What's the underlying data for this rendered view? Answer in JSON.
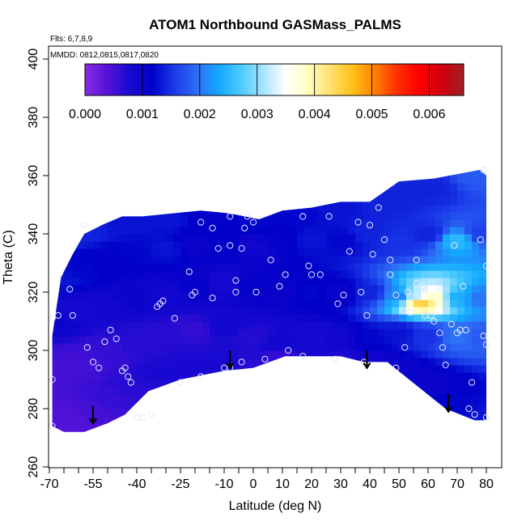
{
  "chart_data": {
    "type": "heatmap",
    "title": "ATOM1 Northbound GASMass_PALMS",
    "subtitle_flights": "Flts: 6,7,8,9",
    "subtitle_dates": "MMDD: 0812,0815,0817,0820",
    "xlabel": "Latitude (deg N)",
    "ylabel": "Theta (C)",
    "xlim": [
      -70,
      82
    ],
    "ylim": [
      260,
      405
    ],
    "x_ticks_major": [
      "-70",
      "-55",
      "-40",
      "-25",
      "-10",
      "0",
      "10",
      "20",
      "30",
      "40",
      "50",
      "60",
      "70",
      "80"
    ],
    "x_tick_values_major": [
      -70,
      -55,
      -40,
      -25,
      -10,
      0,
      10,
      20,
      30,
      40,
      50,
      60,
      70,
      80
    ],
    "x_ticks_minor": [
      -65,
      -60,
      -50,
      -45,
      -35,
      -30,
      -20,
      -15,
      -5,
      5,
      15,
      25,
      35,
      45,
      55,
      65,
      75
    ],
    "y_ticks": [
      "260",
      "280",
      "300",
      "320",
      "340",
      "360",
      "380",
      "400"
    ],
    "y_tick_values": [
      260,
      280,
      300,
      320,
      340,
      360,
      380,
      400
    ],
    "colorbar": {
      "min": 0.0,
      "max": 0.0066,
      "ticks": [
        "0.000",
        "0.001",
        "0.002",
        "0.003",
        "0.004",
        "0.005",
        "0.006"
      ],
      "tick_values": [
        0.0,
        0.001,
        0.002,
        0.003,
        0.004,
        0.005,
        0.006
      ],
      "colors": [
        "#8a2be2",
        "#5512d8",
        "#1a0ad0",
        "#0000c8",
        "#1a3ae8",
        "#2f6cf5",
        "#14a8ff",
        "#4ccbff",
        "#a8e4ff",
        "#ffffff",
        "#ffffc0",
        "#ffe070",
        "#ffc21a",
        "#ff8000",
        "#ff3000",
        "#ff0000",
        "#d00010",
        "#a02020"
      ]
    },
    "coverage_outline": [
      [
        -69,
        274
      ],
      [
        -69,
        305
      ],
      [
        -66,
        325
      ],
      [
        -62,
        333
      ],
      [
        -58,
        340
      ],
      [
        -52,
        343
      ],
      [
        -45,
        346
      ],
      [
        -38,
        346
      ],
      [
        -28,
        347
      ],
      [
        -18,
        348
      ],
      [
        -8,
        347
      ],
      [
        2,
        345
      ],
      [
        10,
        348
      ],
      [
        20,
        349
      ],
      [
        30,
        351
      ],
      [
        40,
        351
      ],
      [
        50,
        358
      ],
      [
        62,
        359
      ],
      [
        78,
        362
      ],
      [
        80,
        360
      ],
      [
        80,
        276
      ],
      [
        76,
        276
      ],
      [
        66,
        280
      ],
      [
        56,
        288
      ],
      [
        46,
        296
      ],
      [
        38,
        296
      ],
      [
        30,
        298
      ],
      [
        20,
        298
      ],
      [
        11,
        298
      ],
      [
        0,
        294
      ],
      [
        -10,
        293
      ],
      [
        -25,
        290
      ],
      [
        -36,
        286
      ],
      [
        -44,
        278
      ],
      [
        -50,
        275
      ],
      [
        -58,
        272
      ],
      [
        -65,
        272
      ],
      [
        -69,
        274
      ]
    ],
    "field_points": [
      [
        -68,
        275,
        0.0004
      ],
      [
        -62,
        277,
        0.0004
      ],
      [
        -55,
        279,
        0.0005
      ],
      [
        -48,
        283,
        0.0006
      ],
      [
        -40,
        287,
        0.0007
      ],
      [
        -30,
        292,
        0.0008
      ],
      [
        -20,
        294,
        0.0008
      ],
      [
        -10,
        295,
        0.0008
      ],
      [
        0,
        295,
        0.0007
      ],
      [
        10,
        297,
        0.0006
      ],
      [
        20,
        297,
        0.0008
      ],
      [
        30,
        296,
        0.0007
      ],
      [
        40,
        296,
        0.0009
      ],
      [
        50,
        293,
        0.001
      ],
      [
        60,
        288,
        0.001
      ],
      [
        70,
        281,
        0.0012
      ],
      [
        78,
        278,
        0.0013
      ],
      [
        -68,
        292,
        0.0005
      ],
      [
        -60,
        296,
        0.0005
      ],
      [
        -50,
        300,
        0.0006
      ],
      [
        -40,
        303,
        0.0007
      ],
      [
        -30,
        305,
        0.0007
      ],
      [
        -20,
        307,
        0.0006
      ],
      [
        -10,
        308,
        0.0009
      ],
      [
        0,
        305,
        0.0007
      ],
      [
        10,
        303,
        0.0009
      ],
      [
        20,
        305,
        0.0008
      ],
      [
        30,
        304,
        0.0009
      ],
      [
        40,
        304,
        0.0012
      ],
      [
        50,
        306,
        0.0013
      ],
      [
        60,
        305,
        0.0015
      ],
      [
        70,
        305,
        0.002
      ],
      [
        78,
        305,
        0.0018
      ],
      [
        -68,
        310,
        0.001
      ],
      [
        -60,
        314,
        0.0008
      ],
      [
        -50,
        316,
        0.0009
      ],
      [
        -40,
        318,
        0.001
      ],
      [
        -30,
        320,
        0.0009
      ],
      [
        -20,
        322,
        0.0011
      ],
      [
        -10,
        323,
        0.0008
      ],
      [
        0,
        322,
        0.0011
      ],
      [
        10,
        321,
        0.001
      ],
      [
        20,
        320,
        0.0012
      ],
      [
        30,
        320,
        0.001
      ],
      [
        40,
        320,
        0.0014
      ],
      [
        50,
        319,
        0.0021
      ],
      [
        56,
        319,
        0.0032
      ],
      [
        58,
        317,
        0.0045
      ],
      [
        62,
        318,
        0.0038
      ],
      [
        70,
        318,
        0.0024
      ],
      [
        78,
        318,
        0.002
      ],
      [
        -66,
        325,
        0.0013
      ],
      [
        -60,
        328,
        0.0012
      ],
      [
        -50,
        332,
        0.0011
      ],
      [
        -40,
        334,
        0.0012
      ],
      [
        -30,
        335,
        0.0013
      ],
      [
        -20,
        336,
        0.001
      ],
      [
        -10,
        336,
        0.0012
      ],
      [
        0,
        336,
        0.0009
      ],
      [
        10,
        338,
        0.0011
      ],
      [
        20,
        338,
        0.0013
      ],
      [
        30,
        338,
        0.0012
      ],
      [
        40,
        340,
        0.0014
      ],
      [
        50,
        338,
        0.0015
      ],
      [
        60,
        340,
        0.0014
      ],
      [
        70,
        338,
        0.0025
      ],
      [
        78,
        340,
        0.0016
      ],
      [
        -58,
        340,
        0.0014
      ],
      [
        -45,
        344,
        0.0013
      ],
      [
        -30,
        345,
        0.0013
      ],
      [
        -15,
        346,
        0.0011
      ],
      [
        0,
        344,
        0.0012
      ],
      [
        15,
        347,
        0.0012
      ],
      [
        30,
        349,
        0.0013
      ],
      [
        45,
        350,
        0.0014
      ],
      [
        60,
        356,
        0.0014
      ],
      [
        78,
        360,
        0.0018
      ]
    ],
    "sample_points": [
      [
        -69,
        311
      ],
      [
        -67,
        312
      ],
      [
        -69,
        290
      ],
      [
        -69,
        274
      ],
      [
        -62,
        312
      ],
      [
        -63,
        321
      ],
      [
        -58,
        343
      ],
      [
        -57,
        301
      ],
      [
        -55,
        296
      ],
      [
        -53,
        294
      ],
      [
        -51,
        303
      ],
      [
        -49,
        307
      ],
      [
        -47,
        304
      ],
      [
        -45,
        293
      ],
      [
        -44,
        294
      ],
      [
        -43,
        291
      ],
      [
        -42,
        289
      ],
      [
        -40,
        277
      ],
      [
        -38,
        277
      ],
      [
        -35,
        278
      ],
      [
        -33,
        315
      ],
      [
        -32,
        316
      ],
      [
        -31,
        317
      ],
      [
        -27,
        311
      ],
      [
        -25,
        289
      ],
      [
        -22,
        327
      ],
      [
        -21,
        319
      ],
      [
        -20,
        320
      ],
      [
        -18,
        291
      ],
      [
        -14,
        318
      ],
      [
        -12,
        335
      ],
      [
        -10,
        294
      ],
      [
        -8,
        294
      ],
      [
        -6,
        324
      ],
      [
        -4,
        335
      ],
      [
        -3,
        342
      ],
      [
        0,
        344
      ],
      [
        -8,
        336
      ],
      [
        -14,
        342
      ],
      [
        -18,
        344
      ],
      [
        -8,
        346
      ],
      [
        -2,
        346
      ],
      [
        -4,
        296
      ],
      [
        -6,
        320
      ],
      [
        1,
        320
      ],
      [
        4,
        297
      ],
      [
        6,
        331
      ],
      [
        9,
        322
      ],
      [
        11,
        326
      ],
      [
        12,
        300
      ],
      [
        17,
        346
      ],
      [
        17,
        298
      ],
      [
        19,
        329
      ],
      [
        20,
        326
      ],
      [
        23,
        326
      ],
      [
        26,
        346
      ],
      [
        28,
        297
      ],
      [
        29,
        316
      ],
      [
        31,
        319
      ],
      [
        33,
        334
      ],
      [
        36,
        344
      ],
      [
        37,
        320
      ],
      [
        38,
        296
      ],
      [
        39,
        312
      ],
      [
        40,
        343
      ],
      [
        41,
        333
      ],
      [
        43,
        349
      ],
      [
        45,
        338
      ],
      [
        47,
        331
      ],
      [
        47,
        326
      ],
      [
        49,
        294
      ],
      [
        49,
        319
      ],
      [
        52,
        301
      ],
      [
        53,
        320
      ],
      [
        54,
        313
      ],
      [
        56,
        331
      ],
      [
        56,
        323
      ],
      [
        58,
        322
      ],
      [
        59,
        312
      ],
      [
        61,
        312
      ],
      [
        62,
        310
      ],
      [
        64,
        306
      ],
      [
        65,
        301
      ],
      [
        66,
        295
      ],
      [
        68,
        309
      ],
      [
        69,
        336
      ],
      [
        70,
        306
      ],
      [
        71,
        307
      ],
      [
        72,
        322
      ],
      [
        73,
        307
      ],
      [
        74,
        280
      ],
      [
        75,
        289
      ],
      [
        76,
        278
      ],
      [
        78,
        338
      ],
      [
        79,
        305
      ],
      [
        80,
        302
      ],
      [
        80,
        329
      ],
      [
        80,
        277
      ],
      [
        79,
        362
      ]
    ],
    "arrows_at_latitude": [
      -55,
      -8,
      39,
      67
    ],
    "grid": false,
    "legend": "colorbar top"
  }
}
